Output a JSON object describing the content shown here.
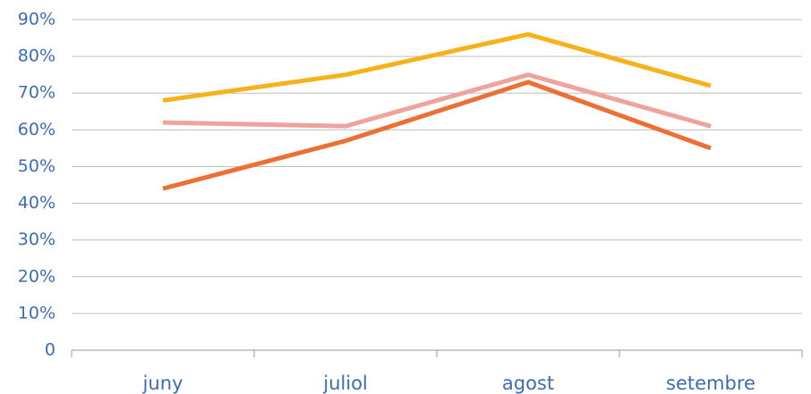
{
  "chart_data": {
    "type": "line",
    "categories": [
      "juny",
      "juliol",
      "agost",
      "setembre"
    ],
    "series": [
      {
        "color": "#f5b21b",
        "values": [
          68,
          75,
          86,
          72
        ]
      },
      {
        "color": "#f0a39c",
        "values": [
          62,
          61,
          75,
          61
        ]
      },
      {
        "color": "#ec6f33",
        "values": [
          44,
          57,
          73,
          55
        ]
      }
    ],
    "ylim": [
      0,
      90
    ],
    "yticks": [
      0,
      {
        "value": 10,
        "label": "10%"
      },
      {
        "value": 20,
        "label": "20%"
      },
      {
        "value": 30,
        "label": "30%"
      },
      {
        "value": 40,
        "label": "40%"
      },
      {
        "value": 50,
        "label": "50%"
      },
      {
        "value": 60,
        "label": "60%"
      },
      {
        "value": 70,
        "label": "70%"
      },
      {
        "value": 80,
        "label": "80%"
      },
      {
        "value": 90,
        "label": "90%"
      }
    ],
    "grid": true
  }
}
